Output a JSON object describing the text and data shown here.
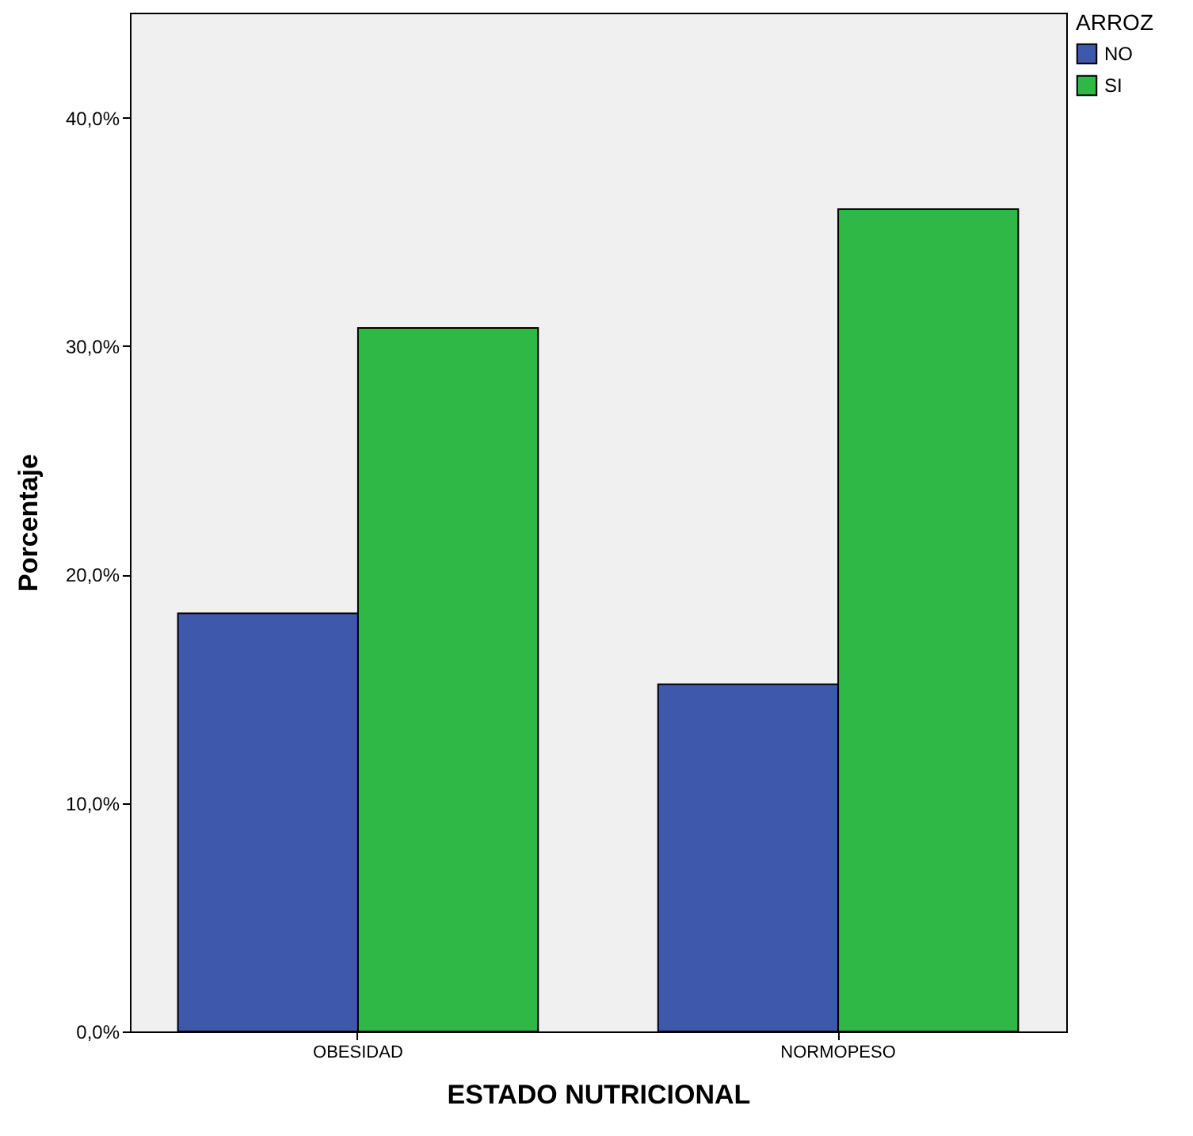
{
  "chart_data": {
    "type": "bar",
    "xlabel": "ESTADO NUTRICIONAL",
    "ylabel": "Porcentaje",
    "legend_title": "ARROZ",
    "legend": "top right",
    "grid": false,
    "categories": [
      "OBESIDAD",
      "NORMOPESO"
    ],
    "series": [
      {
        "name": "NO",
        "color": "#3e58ac",
        "values": [
          18.3,
          15.2
        ]
      },
      {
        "name": "SI",
        "color": "#30b847",
        "values": [
          30.8,
          36.0
        ]
      }
    ],
    "ylim": [
      0,
      44.6
    ],
    "yticks": [
      {
        "value": 0,
        "label": "0,0%"
      },
      {
        "value": 10,
        "label": "10,0%"
      },
      {
        "value": 20,
        "label": "20,0%"
      },
      {
        "value": 30,
        "label": "30,0%"
      },
      {
        "value": 40,
        "label": "40,0%"
      }
    ]
  }
}
